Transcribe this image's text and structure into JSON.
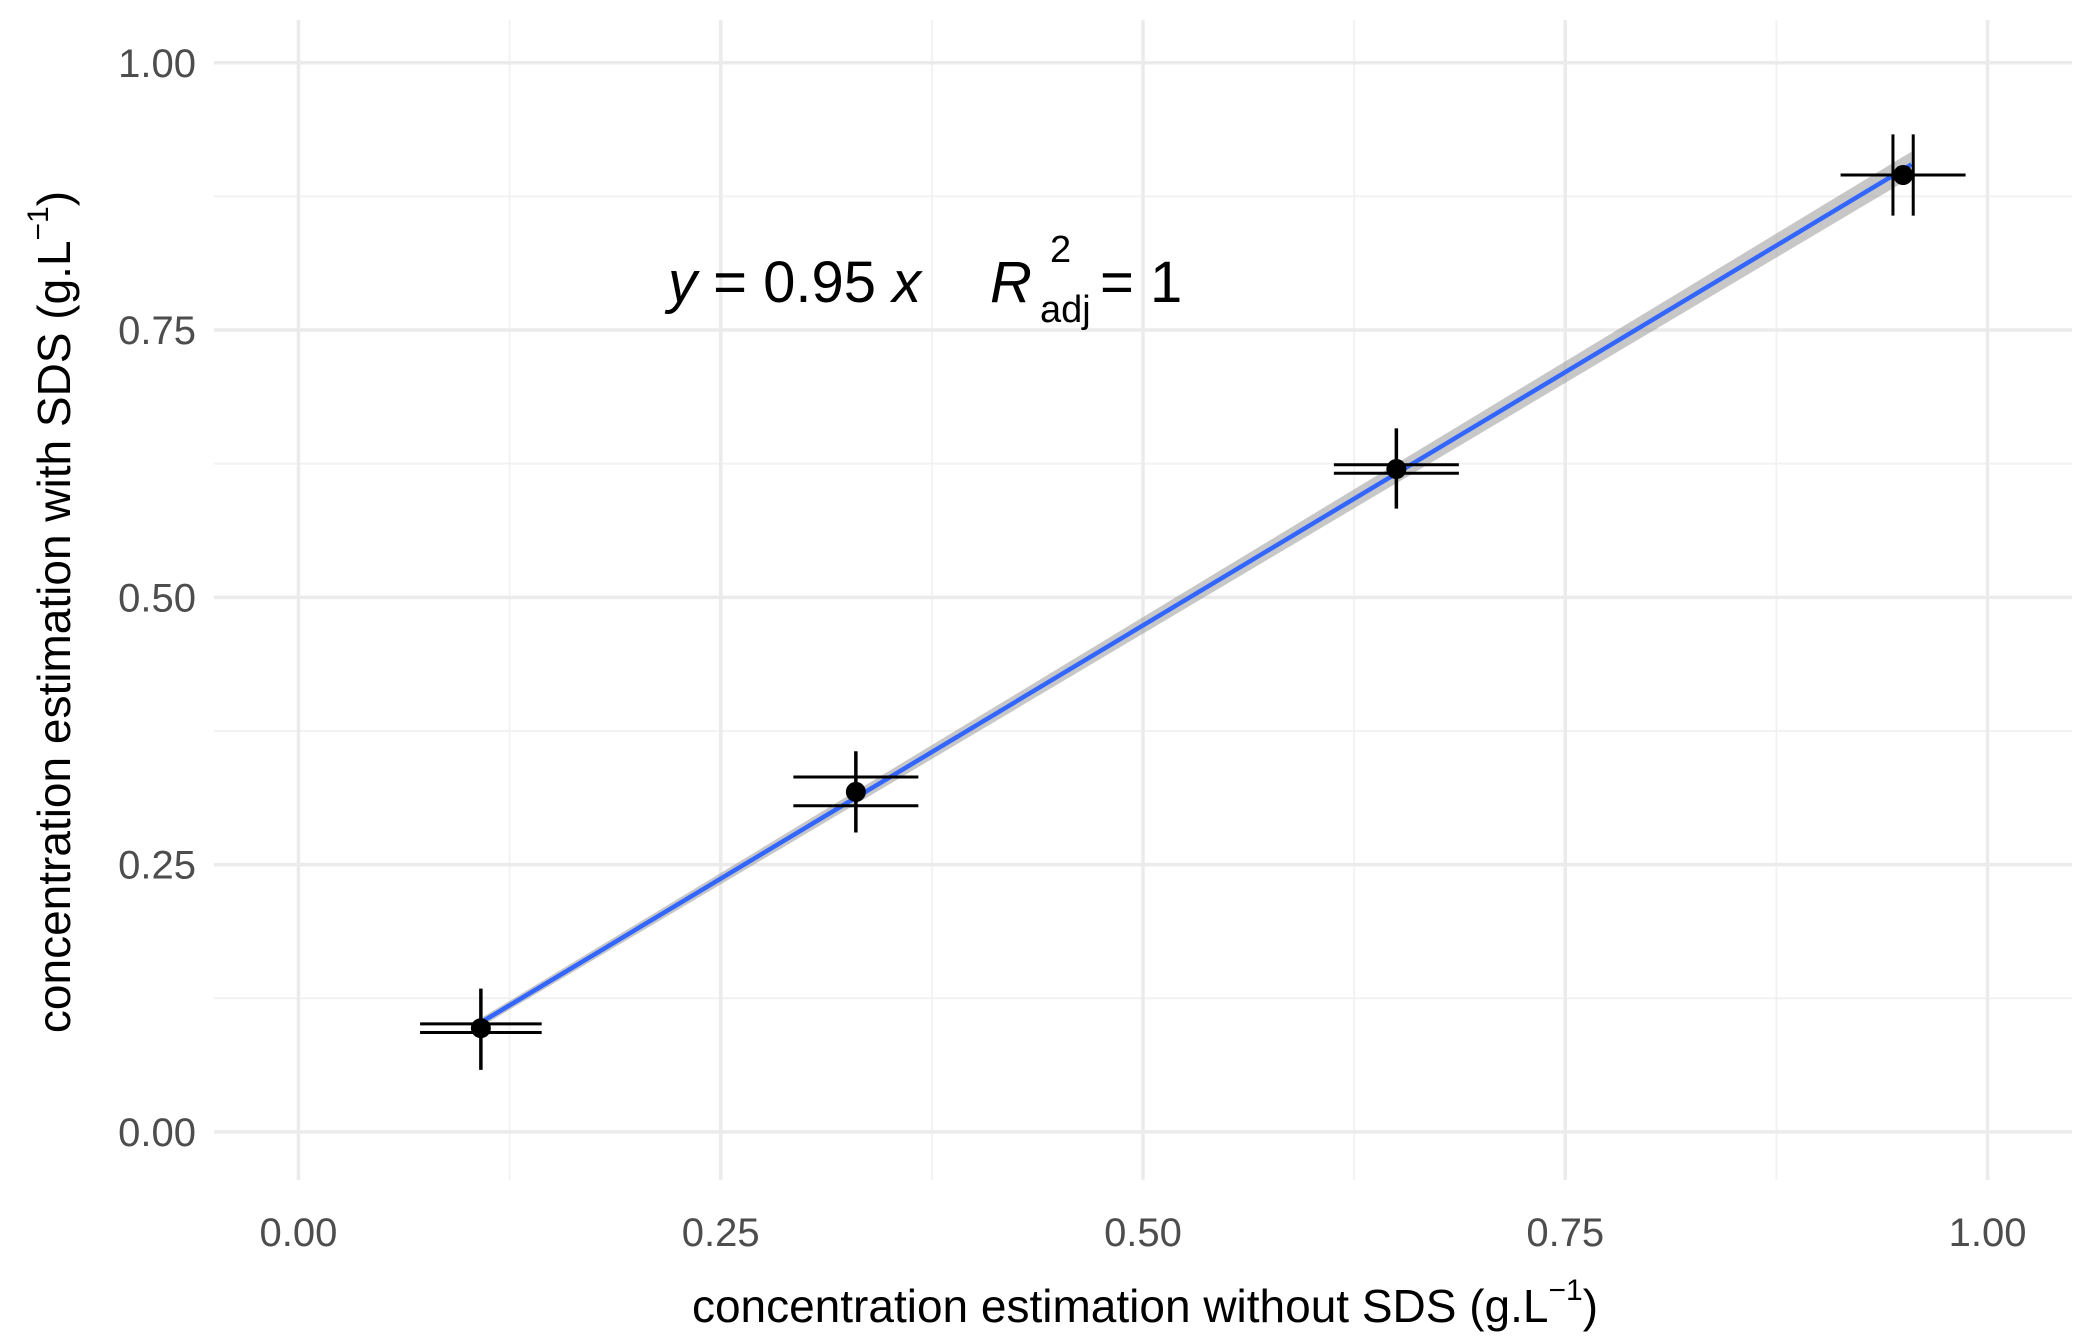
{
  "chart_data": {
    "type": "scatter",
    "title": "",
    "xlabel": "concentration estimation without SDS (g.L",
    "xlabel_sup": "−1",
    "xlabel_close": ")",
    "ylabel": "concentration estimation with SDS (g.L",
    "ylabel_sup": "−1",
    "ylabel_close": ")",
    "xlim": [
      -0.05,
      1.05
    ],
    "ylim": [
      -0.045,
      1.04
    ],
    "x_ticks": [
      0,
      0.25,
      0.5,
      0.75,
      1
    ],
    "x_tick_labels": [
      "0.00",
      "0.25",
      "0.50",
      "0.75",
      "1.00"
    ],
    "y_ticks": [
      0,
      0.25,
      0.5,
      0.75,
      1
    ],
    "y_tick_labels": [
      "0.00",
      "0.25",
      "0.50",
      "0.75",
      "1.00"
    ],
    "grid": true,
    "points": [
      {
        "x": 0.108,
        "y": 0.097,
        "xerr_rows": [
          {
            "y": 0.101,
            "xmin": 0.072,
            "xmax": 0.144
          },
          {
            "y": 0.093,
            "xmin": 0.072,
            "xmax": 0.144
          }
        ],
        "yerr": [
          0.058,
          0.134
        ]
      },
      {
        "x": 0.33,
        "y": 0.318,
        "xerr_rows": [
          {
            "y": 0.332,
            "xmin": 0.293,
            "xmax": 0.367
          },
          {
            "y": 0.305,
            "xmin": 0.293,
            "xmax": 0.367
          }
        ],
        "yerr": [
          0.28,
          0.356
        ]
      },
      {
        "x": 0.65,
        "y": 0.62,
        "xerr_rows": [
          {
            "y": 0.624,
            "xmin": 0.613,
            "xmax": 0.687
          },
          {
            "y": 0.616,
            "xmin": 0.613,
            "xmax": 0.687
          }
        ],
        "yerr": [
          0.583,
          0.658
        ]
      },
      {
        "x": 0.95,
        "y": 0.895,
        "xerr_rows": [
          {
            "y": 0.895,
            "xmin": 0.913,
            "xmax": 0.987
          }
        ],
        "yerr_cols": [
          {
            "x": 0.944,
            "ymin": 0.857,
            "ymax": 0.933
          },
          {
            "x": 0.956,
            "ymin": 0.857,
            "ymax": 0.933
          }
        ]
      }
    ],
    "fit": {
      "slope": 0.9475,
      "x_range": [
        0.108,
        0.955
      ],
      "color": "#3366ff",
      "band_color": "#999999"
    },
    "equation": {
      "y": "y",
      "eq_text": " = 0.95 ",
      "x": "x",
      "r": "R",
      "r_sup": "2",
      "r_sub": "adj",
      "r_val": " = 1"
    }
  }
}
